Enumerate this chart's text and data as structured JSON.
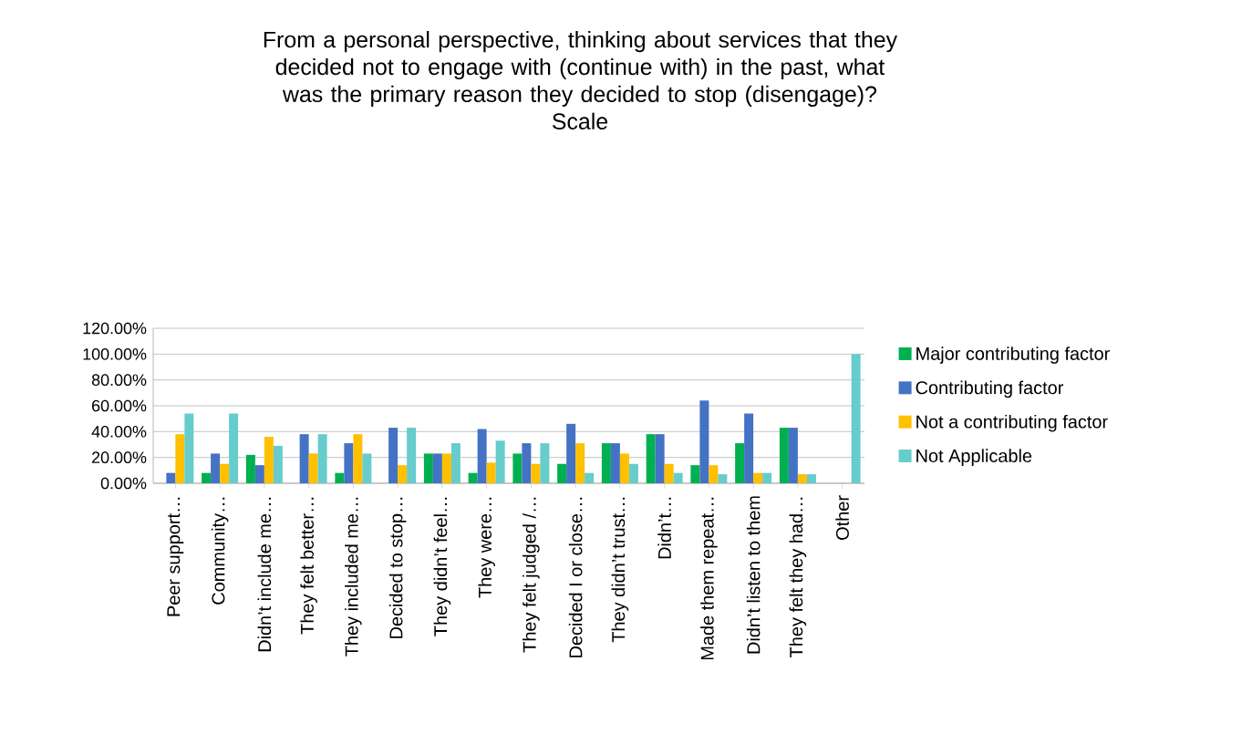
{
  "chart_data": {
    "type": "bar",
    "title": "From a personal perspective, thinking about services that they decided not to engage with (continue with) in the past, what was the primary reason they decided to stop (disengage)?",
    "subtitle": "Scale",
    "categories": [
      "Peer support…",
      "Community…",
      "Didn’t include me…",
      "They felt better…",
      "They included me…",
      "Decided to stop…",
      "They didn’t feel…",
      "They were…",
      "They felt judged /…",
      "Decided I or close…",
      "They didn’t trust…",
      "Didn’t…",
      "Made them repeat…",
      "Didn’t listen to them",
      "They felt they had…",
      "Other"
    ],
    "series": [
      {
        "name": "Major contributing factor",
        "color": "#00b050",
        "values": [
          0,
          8,
          22,
          0,
          8,
          0,
          23,
          8,
          23,
          15,
          31,
          38,
          14,
          31,
          43,
          0
        ]
      },
      {
        "name": "Contributing factor",
        "color": "#4472c4",
        "values": [
          8,
          23,
          14,
          38,
          31,
          43,
          23,
          42,
          31,
          46,
          31,
          38,
          64,
          54,
          43,
          0
        ]
      },
      {
        "name": "Not a contributing factor",
        "color": "#ffc000",
        "values": [
          38,
          15,
          36,
          23,
          38,
          14,
          23,
          16,
          15,
          31,
          23,
          15,
          14,
          8,
          7,
          0
        ]
      },
      {
        "name": "Not Applicable",
        "color": "#66cccc",
        "values": [
          54,
          54,
          29,
          38,
          23,
          43,
          31,
          33,
          31,
          8,
          15,
          8,
          7,
          8,
          7,
          100
        ]
      }
    ],
    "ylim": [
      0,
      120
    ],
    "yticks": [
      {
        "value": 0,
        "label": "0.00%"
      },
      {
        "value": 20,
        "label": "20.00%"
      },
      {
        "value": 40,
        "label": "40.00%"
      },
      {
        "value": 60,
        "label": "60.00%"
      },
      {
        "value": 80,
        "label": "80.00%"
      },
      {
        "value": 100,
        "label": "100.00%"
      },
      {
        "value": 120,
        "label": "120.00%"
      }
    ],
    "grid": "y",
    "legend": "right"
  }
}
